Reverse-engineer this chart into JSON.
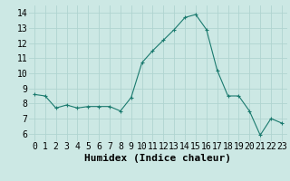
{
  "x": [
    0,
    1,
    2,
    3,
    4,
    5,
    6,
    7,
    8,
    9,
    10,
    11,
    12,
    13,
    14,
    15,
    16,
    17,
    18,
    19,
    20,
    21,
    22,
    23
  ],
  "y": [
    8.6,
    8.5,
    7.7,
    7.9,
    7.7,
    7.8,
    7.8,
    7.8,
    7.5,
    8.4,
    10.7,
    11.5,
    12.2,
    12.9,
    13.7,
    13.9,
    12.9,
    10.2,
    8.5,
    8.5,
    7.5,
    5.9,
    7.0,
    6.7
  ],
  "xlabel": "Humidex (Indice chaleur)",
  "ylabel": "",
  "xlim": [
    -0.5,
    23.5
  ],
  "ylim": [
    5.5,
    14.5
  ],
  "yticks": [
    6,
    7,
    8,
    9,
    10,
    11,
    12,
    13,
    14
  ],
  "xticks": [
    0,
    1,
    2,
    3,
    4,
    5,
    6,
    7,
    8,
    9,
    10,
    11,
    12,
    13,
    14,
    15,
    16,
    17,
    18,
    19,
    20,
    21,
    22,
    23
  ],
  "line_color": "#1a7a6e",
  "marker": "+",
  "bg_color": "#cce8e4",
  "grid_color": "#b0d4d0",
  "xlabel_fontsize": 8,
  "tick_fontsize": 7
}
